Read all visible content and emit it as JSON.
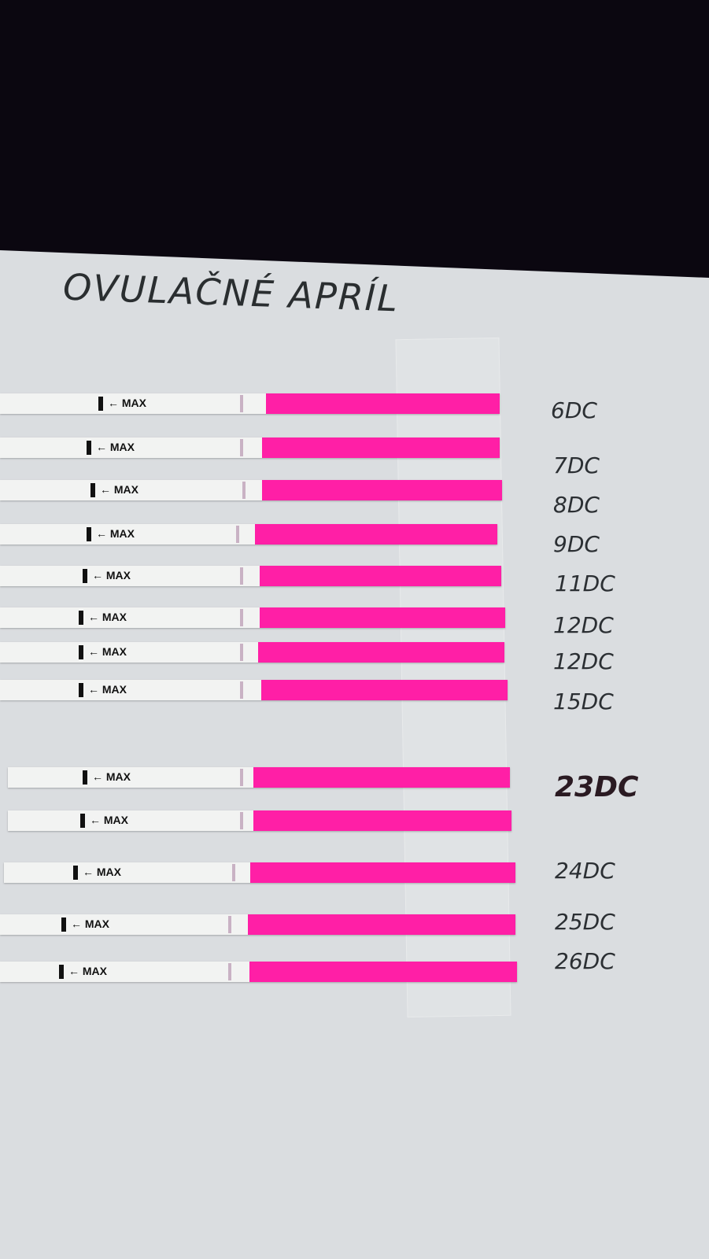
{
  "title": "OVULAČNÉ APRÍL",
  "strip_text": "← MAX",
  "colors": {
    "test_window": "#ff1fa6",
    "paper": "#dadde0",
    "background": "#0b0710"
  },
  "strips": [
    {
      "label": "6DC"
    },
    {
      "label": "7DC"
    },
    {
      "label": "8DC"
    },
    {
      "label": "9DC"
    },
    {
      "label": "11DC"
    },
    {
      "label": "12DC"
    },
    {
      "label": "12DC"
    },
    {
      "label": "15DC"
    },
    {
      "label": "23DC"
    },
    {
      "label": "24DC"
    },
    {
      "label": "25DC"
    },
    {
      "label": "26DC"
    }
  ]
}
